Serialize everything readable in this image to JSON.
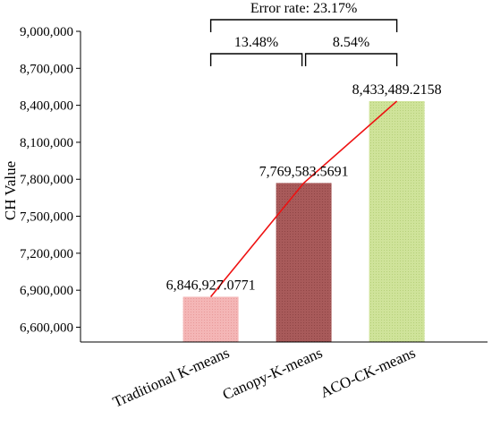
{
  "chart_data": {
    "type": "bar",
    "ylabel": "CH Value",
    "xlabel": "",
    "ylim": [
      6480000,
      9000000
    ],
    "yticks": [
      6600000,
      6900000,
      7200000,
      7500000,
      7800000,
      8100000,
      8400000,
      8700000,
      9000000
    ],
    "ytick_labels": [
      "6,600,000",
      "6,900,000",
      "7,200,000",
      "7,500,000",
      "7,800,000",
      "8,100,000",
      "8,400,000",
      "8,700,000",
      "9,000,000"
    ],
    "categories": [
      "Traditional K-means",
      "Canopy-K-means",
      "ACO-CK-means"
    ],
    "values": [
      6846927.0771,
      7769583.5691,
      8433489.2158
    ],
    "value_labels": [
      "6,846,927.0771",
      "7,769,583.5691",
      "8,433,489.2158"
    ],
    "bar_colors": [
      "#f4b6b6",
      "#a85a5a",
      "#cfe39a"
    ],
    "bar_hatch_colors": [
      "#e89a9a",
      "#8f4545",
      "#b6d07a"
    ],
    "line_color": "#ee1111",
    "line_overlay": true,
    "grid": false,
    "annotations": [
      {
        "text": "Error rate: 23.17%",
        "from": 0,
        "to": 2,
        "level": 2
      },
      {
        "text": "13.48%",
        "from": 0,
        "to": 1,
        "level": 1
      },
      {
        "text": "8.54%",
        "from": 1,
        "to": 2,
        "level": 1
      }
    ]
  }
}
